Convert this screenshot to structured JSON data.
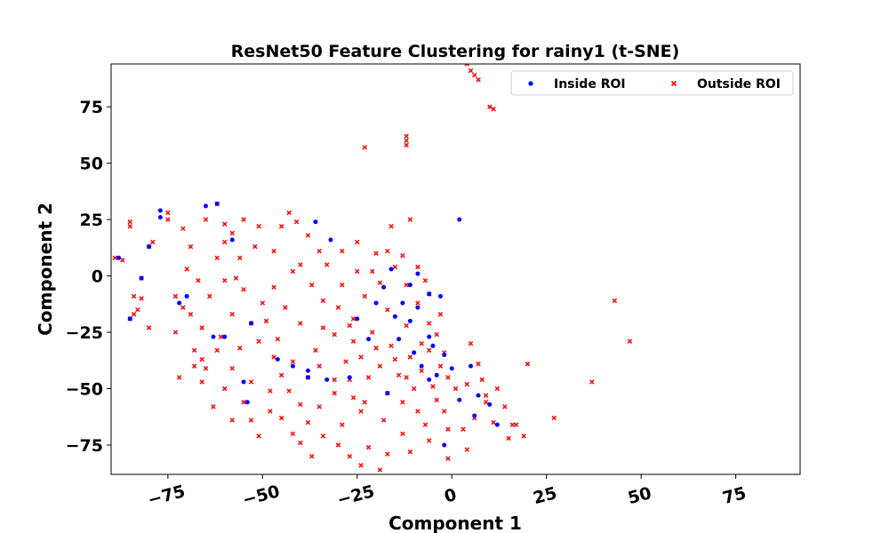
{
  "chart_data": {
    "type": "scatter",
    "title": "ResNet50 Feature Clustering for rainy1 (t-SNE)",
    "xlabel": "Component 1",
    "ylabel": "Component 2",
    "xlim": [
      -90,
      92
    ],
    "ylim": [
      -88,
      94
    ],
    "xticks": [
      -75,
      -50,
      -25,
      0,
      25,
      50,
      75
    ],
    "yticks": [
      -75,
      -50,
      -25,
      0,
      25,
      50,
      75
    ],
    "xtick_labels": [
      "−75",
      "−50",
      "−25",
      "0",
      "25",
      "50",
      "75"
    ],
    "ytick_labels": [
      "−75",
      "−50",
      "−25",
      "0",
      "25",
      "50",
      "75"
    ],
    "grid": false,
    "legend_position": "top-right",
    "series": [
      {
        "name": "Outside ROI",
        "marker": "x",
        "color": "#ff0000",
        "points": [
          [
            4,
            94
          ],
          [
            5,
            91
          ],
          [
            6,
            89
          ],
          [
            7,
            87
          ],
          [
            10,
            75
          ],
          [
            11,
            74
          ],
          [
            -23,
            57
          ],
          [
            -12,
            62
          ],
          [
            -12,
            60
          ],
          [
            -12,
            58
          ],
          [
            -11,
            25
          ],
          [
            -16,
            22
          ],
          [
            -80,
            13
          ],
          [
            -79,
            15
          ],
          [
            -85,
            24
          ],
          [
            -85,
            22
          ],
          [
            -87,
            7
          ],
          [
            -89,
            8
          ],
          [
            -84,
            -9
          ],
          [
            -82,
            -1
          ],
          [
            -82,
            -10
          ],
          [
            -85,
            -19
          ],
          [
            -84,
            -17
          ],
          [
            -83,
            -15
          ],
          [
            -80,
            -23
          ],
          [
            -75,
            25
          ],
          [
            -75,
            28
          ],
          [
            -71,
            21
          ],
          [
            -69,
            13
          ],
          [
            -71,
            -14
          ],
          [
            -69,
            -17
          ],
          [
            -73,
            -9
          ],
          [
            -66,
            -23
          ],
          [
            -73,
            -25
          ],
          [
            -65,
            -41
          ],
          [
            -66,
            -47
          ],
          [
            -68,
            -33
          ],
          [
            -65,
            25
          ],
          [
            -62,
            32
          ],
          [
            -60,
            23
          ],
          [
            -58,
            19
          ],
          [
            -55,
            25
          ],
          [
            -51,
            22
          ],
          [
            -52,
            13
          ],
          [
            -56,
            8
          ],
          [
            -60,
            15
          ],
          [
            -62,
            8
          ],
          [
            -60,
            -2
          ],
          [
            -55,
            -6
          ],
          [
            -50,
            -12
          ],
          [
            -64,
            -9
          ],
          [
            -58,
            -17
          ],
          [
            -53,
            -21
          ],
          [
            -61,
            -27
          ],
          [
            -56,
            -32
          ],
          [
            -51,
            -29
          ],
          [
            -47,
            -36
          ],
          [
            -58,
            -41
          ],
          [
            -53,
            -47
          ],
          [
            -60,
            -50
          ],
          [
            -55,
            -56
          ],
          [
            -48,
            -51
          ],
          [
            -47,
            11
          ],
          [
            -45,
            22
          ],
          [
            -43,
            28
          ],
          [
            -41,
            24
          ],
          [
            -38,
            18
          ],
          [
            -35,
            11
          ],
          [
            -42,
            2
          ],
          [
            -47,
            -5
          ],
          [
            -44,
            -14
          ],
          [
            -40,
            -21
          ],
          [
            -46,
            -28
          ],
          [
            -42,
            -38
          ],
          [
            -38,
            -45
          ],
          [
            -43,
            -51
          ],
          [
            -48,
            -60
          ],
          [
            -51,
            -71
          ],
          [
            -42,
            -70
          ],
          [
            -38,
            -65
          ],
          [
            -35,
            -58
          ],
          [
            -31,
            -52
          ],
          [
            -27,
            -46
          ],
          [
            -36,
            -33
          ],
          [
            -31,
            -26
          ],
          [
            -26,
            -19
          ],
          [
            -34,
            -11
          ],
          [
            -29,
            -4
          ],
          [
            -33,
            5
          ],
          [
            -29,
            11
          ],
          [
            -25,
            15
          ],
          [
            -20,
            10
          ],
          [
            -15,
            4
          ],
          [
            -12,
            -4
          ],
          [
            -9,
            -12
          ],
          [
            -6,
            -21
          ],
          [
            -19,
            -3
          ],
          [
            -23,
            -9
          ],
          [
            -17,
            -15
          ],
          [
            -12,
            -22
          ],
          [
            -21,
            -25
          ],
          [
            -16,
            -31
          ],
          [
            -11,
            -36
          ],
          [
            -6,
            -33
          ],
          [
            -3,
            -40
          ],
          [
            -1,
            -45
          ],
          [
            -8,
            -42
          ],
          [
            -14,
            -44
          ],
          [
            -19,
            -40
          ],
          [
            -24,
            -36
          ],
          [
            -26,
            -29
          ],
          [
            -22,
            -45
          ],
          [
            -17,
            -52
          ],
          [
            -13,
            -56
          ],
          [
            -9,
            -60
          ],
          [
            -4,
            -55
          ],
          [
            1,
            -50
          ],
          [
            -2,
            -60
          ],
          [
            -7,
            -66
          ],
          [
            -13,
            -70
          ],
          [
            -18,
            -64
          ],
          [
            -24,
            -60
          ],
          [
            -29,
            -66
          ],
          [
            -34,
            -71
          ],
          [
            -22,
            -76
          ],
          [
            -17,
            -79
          ],
          [
            -11,
            -78
          ],
          [
            -6,
            -73
          ],
          [
            -1,
            -81
          ],
          [
            3,
            -68
          ],
          [
            6,
            -63
          ],
          [
            9,
            -56
          ],
          [
            4,
            -48
          ],
          [
            8,
            -46
          ],
          [
            12,
            -50
          ],
          [
            14,
            -58
          ],
          [
            11,
            -65
          ],
          [
            15,
            -72
          ],
          [
            19,
            -71
          ],
          [
            -27,
            -80
          ],
          [
            -24,
            -84
          ],
          [
            -19,
            -86
          ],
          [
            -30,
            -75
          ],
          [
            -37,
            -80
          ],
          [
            -40,
            -74
          ],
          [
            4,
            -77
          ],
          [
            -6,
            -8
          ],
          [
            -7,
            -2
          ],
          [
            -9,
            4
          ],
          [
            -13,
            9
          ],
          [
            -17,
            11
          ],
          [
            -4,
            -26
          ],
          [
            -2,
            -34
          ],
          [
            -25,
            2
          ],
          [
            -30,
            -14
          ],
          [
            -37,
            -4
          ],
          [
            -40,
            5
          ],
          [
            -34,
            -23
          ],
          [
            -28,
            -38
          ],
          [
            -45,
            -44
          ],
          [
            -49,
            -20
          ],
          [
            -57,
            -1
          ],
          [
            -62,
            -33
          ],
          [
            -66,
            -37
          ],
          [
            -67,
            -2
          ],
          [
            -70,
            3
          ],
          [
            -68,
            -40
          ],
          [
            -72,
            -45
          ],
          [
            -35,
            -40
          ],
          [
            -40,
            -57
          ],
          [
            -31,
            -46
          ],
          [
            -26,
            -54
          ],
          [
            -45,
            -63
          ],
          [
            -12,
            -45
          ],
          [
            -8,
            -30
          ],
          [
            7,
            -39
          ],
          [
            5,
            -30
          ],
          [
            9,
            -53
          ],
          [
            16,
            -66
          ],
          [
            -20,
            -32
          ],
          [
            -15,
            -37
          ],
          [
            -3,
            -17
          ],
          [
            -21,
            2
          ],
          [
            -27,
            -22
          ],
          [
            -23,
            -56
          ],
          [
            -10,
            -50
          ],
          [
            -5,
            -49
          ],
          [
            17,
            -66
          ],
          [
            -1,
            -68
          ],
          [
            -58,
            -64
          ],
          [
            -63,
            -58
          ],
          [
            -53,
            -64
          ],
          [
            20,
            -39
          ],
          [
            27,
            -63
          ],
          [
            37,
            -47
          ],
          [
            43,
            -11
          ],
          [
            47,
            -29
          ]
        ]
      },
      {
        "name": "Inside ROI",
        "marker": "o",
        "color": "#0000ff",
        "points": [
          [
            2,
            25
          ],
          [
            -77,
            29
          ],
          [
            -77,
            26
          ],
          [
            -80,
            13
          ],
          [
            -82,
            -1
          ],
          [
            -88,
            8
          ],
          [
            -85,
            -19
          ],
          [
            -72,
            -12
          ],
          [
            -70,
            -9
          ],
          [
            -62,
            32
          ],
          [
            -65,
            31
          ],
          [
            -58,
            16
          ],
          [
            -53,
            -21
          ],
          [
            -60,
            -27
          ],
          [
            -54,
            -56
          ],
          [
            -46,
            -37
          ],
          [
            -42,
            -40
          ],
          [
            -38,
            -45
          ],
          [
            -36,
            24
          ],
          [
            -38,
            -42
          ],
          [
            -33,
            -46
          ],
          [
            -32,
            16
          ],
          [
            -27,
            -45
          ],
          [
            -17,
            -52
          ],
          [
            -16,
            3
          ],
          [
            -18,
            -5
          ],
          [
            -14,
            -28
          ],
          [
            -10,
            -34
          ],
          [
            -8,
            -40
          ],
          [
            -6,
            -46
          ],
          [
            -4,
            -44
          ],
          [
            -11,
            -20
          ],
          [
            -13,
            -12
          ],
          [
            -20,
            -12
          ],
          [
            -25,
            -19
          ],
          [
            -22,
            -28
          ],
          [
            -6,
            -27
          ],
          [
            -2,
            -35
          ],
          [
            0,
            -41
          ],
          [
            5,
            -40
          ],
          [
            7,
            -53
          ],
          [
            10,
            -57
          ],
          [
            12,
            -66
          ],
          [
            6,
            -62
          ],
          [
            2,
            -55
          ],
          [
            -2,
            -75
          ],
          [
            -9,
            1
          ],
          [
            -11,
            -4
          ],
          [
            -6,
            -8
          ],
          [
            -9,
            -14
          ],
          [
            -15,
            -18
          ],
          [
            -3,
            -9
          ],
          [
            -5,
            -31
          ],
          [
            -63,
            -27
          ],
          [
            -55,
            -47
          ]
        ]
      }
    ]
  }
}
